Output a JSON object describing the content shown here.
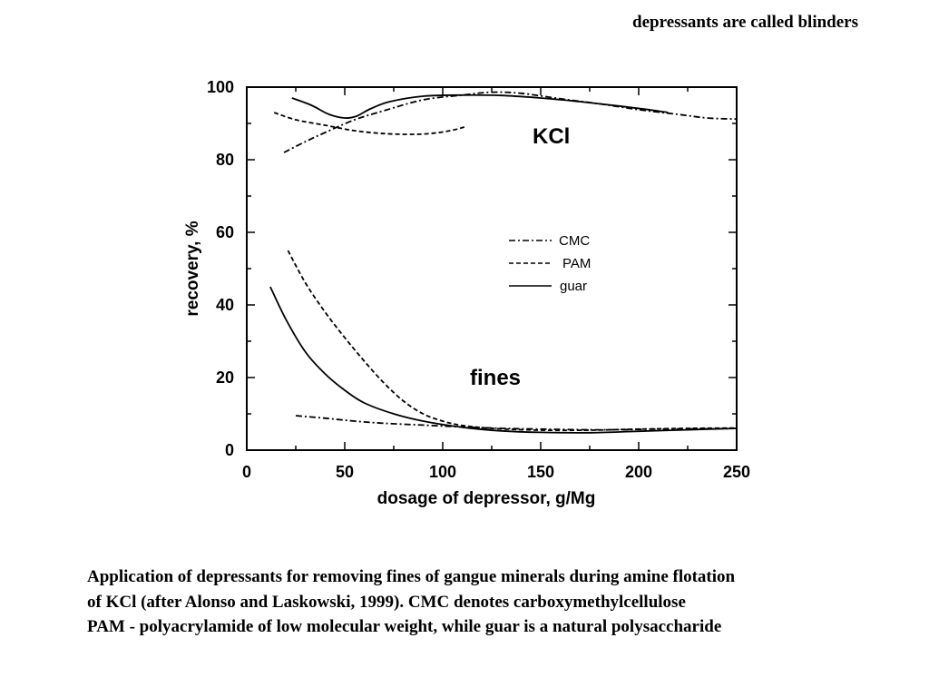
{
  "slide": {
    "header_note": "depressants are called blinders",
    "caption": [
      "Application of depressants for removing fines of gangue minerals during amine flotation",
      "of KCl (after Alonso and Laskowski, 1999). CMC denotes carboxymethylcellulose",
      "PAM - polyacrylamide of low molecular weight, while guar is a natural polysaccharide"
    ]
  },
  "chart_data": {
    "type": "line",
    "title": "",
    "xlabel": "dosage of depressor, g/Mg",
    "ylabel": "recovery, %",
    "xlim": [
      0,
      250
    ],
    "ylim": [
      0,
      100
    ],
    "x_ticks": [
      "0",
      "50",
      "100",
      "150",
      "200",
      "250"
    ],
    "y_ticks": [
      "0",
      "20",
      "40",
      "60",
      "80",
      "100"
    ],
    "annotations": {
      "kcl": "KCl",
      "fines": "fines"
    },
    "legend": {
      "placement": "center-right",
      "entries": [
        {
          "label": "CMC",
          "style": "dashdot"
        },
        {
          "label": "PAM",
          "style": "dashed"
        },
        {
          "label": "guar",
          "style": "solid"
        }
      ]
    },
    "series": [
      {
        "name": "CMC",
        "group": "KCl",
        "style": "dashdot",
        "points": [
          [
            19,
            82
          ],
          [
            30,
            85
          ],
          [
            40,
            87.5
          ],
          [
            55,
            91
          ],
          [
            70,
            93.5
          ],
          [
            90,
            96.5
          ],
          [
            110,
            97.8
          ],
          [
            125,
            98.6
          ],
          [
            140,
            98.3
          ],
          [
            160,
            96.8
          ],
          [
            180,
            95.4
          ],
          [
            200,
            93.8
          ],
          [
            220,
            92.5
          ],
          [
            235,
            91.5
          ],
          [
            250,
            91.2
          ]
        ]
      },
      {
        "name": "PAM",
        "group": "KCl",
        "style": "dashed",
        "points": [
          [
            14,
            93
          ],
          [
            25,
            91
          ],
          [
            40,
            89.5
          ],
          [
            55,
            88
          ],
          [
            70,
            87.2
          ],
          [
            85,
            87
          ],
          [
            95,
            87.3
          ],
          [
            104,
            88
          ],
          [
            111,
            89
          ]
        ]
      },
      {
        "name": "guar",
        "group": "KCl",
        "style": "solid",
        "points": [
          [
            23,
            97
          ],
          [
            33,
            95
          ],
          [
            42,
            92.5
          ],
          [
            50,
            91.5
          ],
          [
            56,
            92
          ],
          [
            63,
            94
          ],
          [
            73,
            96
          ],
          [
            90,
            97.5
          ],
          [
            110,
            97.8
          ],
          [
            130,
            97.7
          ],
          [
            150,
            97
          ],
          [
            170,
            96
          ],
          [
            190,
            94.8
          ],
          [
            205,
            93.8
          ],
          [
            215,
            93
          ]
        ]
      },
      {
        "name": "CMC",
        "group": "fines",
        "style": "dashdot",
        "points": [
          [
            25,
            9.5
          ],
          [
            40,
            8.8
          ],
          [
            55,
            8
          ],
          [
            70,
            7.4
          ],
          [
            90,
            6.9
          ],
          [
            110,
            6.4
          ],
          [
            130,
            6
          ],
          [
            150,
            5.8
          ],
          [
            180,
            5.6
          ],
          [
            210,
            5.8
          ],
          [
            240,
            5.9
          ],
          [
            250,
            6
          ]
        ]
      },
      {
        "name": "PAM",
        "group": "fines",
        "style": "dashed",
        "points": [
          [
            21,
            55
          ],
          [
            30,
            46
          ],
          [
            40,
            38
          ],
          [
            50,
            31
          ],
          [
            60,
            24.5
          ],
          [
            70,
            18.5
          ],
          [
            80,
            13.5
          ],
          [
            90,
            10
          ],
          [
            100,
            8
          ],
          [
            110,
            6.8
          ],
          [
            125,
            6
          ],
          [
            150,
            5.5
          ],
          [
            175,
            5.5
          ],
          [
            200,
            5.8
          ],
          [
            225,
            6
          ],
          [
            250,
            6.1
          ]
        ]
      },
      {
        "name": "guar",
        "group": "fines",
        "style": "solid",
        "points": [
          [
            12,
            45
          ],
          [
            20,
            36
          ],
          [
            30,
            27
          ],
          [
            40,
            21
          ],
          [
            50,
            16.5
          ],
          [
            60,
            13
          ],
          [
            75,
            10
          ],
          [
            90,
            8
          ],
          [
            110,
            6.3
          ],
          [
            130,
            5.3
          ],
          [
            150,
            4.9
          ],
          [
            175,
            4.8
          ],
          [
            200,
            5.2
          ],
          [
            225,
            5.6
          ],
          [
            250,
            6
          ]
        ]
      }
    ]
  }
}
